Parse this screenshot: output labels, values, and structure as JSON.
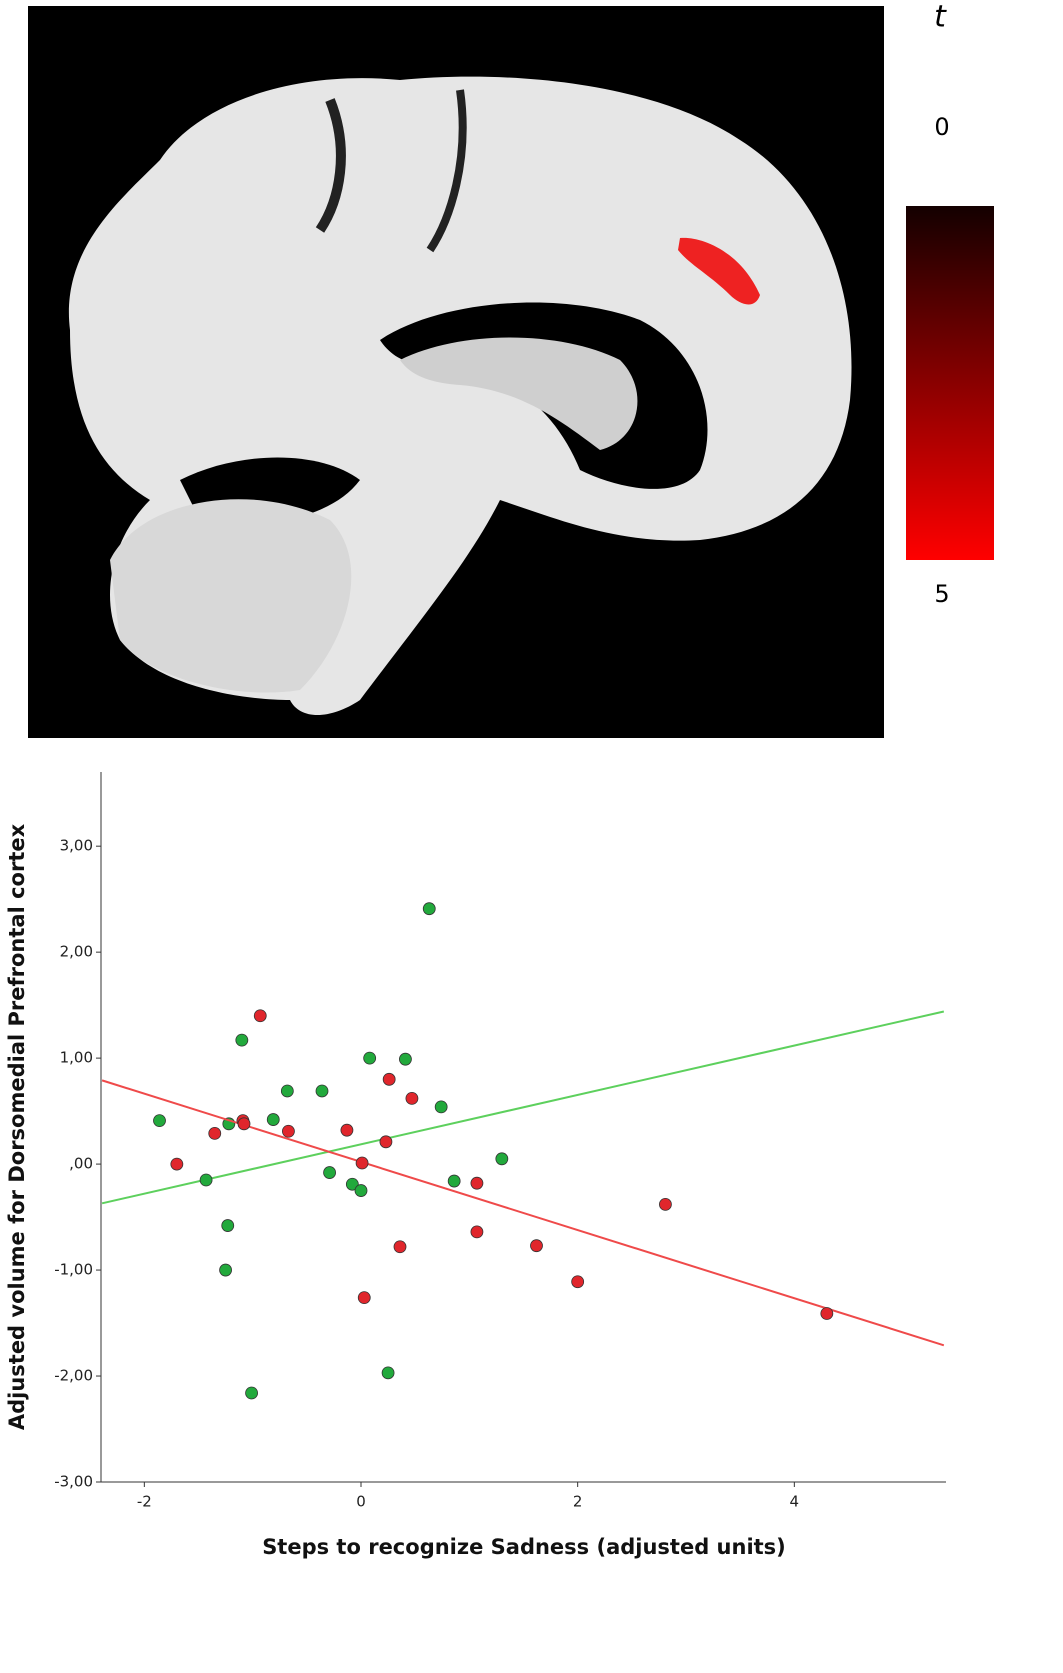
{
  "colorbar": {
    "label": "t",
    "lim": [
      0,
      5
    ],
    "ticks": [
      0,
      5
    ],
    "colors": [
      "#140000",
      "#ff0000"
    ]
  },
  "chart_data": {
    "type": "scatter",
    "xlabel": "Steps to recognize Sadness (adjusted units)",
    "ylabel": "Adjusted volume for Dorsomedial Prefrontal cortex",
    "xlim": [
      -2.4,
      5.4
    ],
    "ylim": [
      -3,
      3.7
    ],
    "xticks": [
      -2,
      0,
      2,
      4
    ],
    "yticks": [
      {
        "value": -3,
        "label": "-3,00"
      },
      {
        "value": -2,
        "label": "-2,00"
      },
      {
        "value": -1,
        "label": "-1,00"
      },
      {
        "value": 0,
        "label": ",00"
      },
      {
        "value": 1,
        "label": "1,00"
      },
      {
        "value": 2,
        "label": "2,00"
      },
      {
        "value": 3,
        "label": "3,00"
      }
    ],
    "series": [
      {
        "color": "#22a93c",
        "x": [
          -1.86,
          -1.1,
          -0.68,
          -0.81,
          -1.22,
          -1.43,
          -1.23,
          -1.25,
          -1.01,
          -0.36,
          -0.29,
          -0.08,
          0.0,
          0.08,
          0.41,
          0.63,
          0.74,
          0.86,
          1.3,
          0.25
        ],
        "values": [
          0.41,
          1.17,
          0.69,
          0.42,
          0.38,
          -0.15,
          -0.58,
          -1.0,
          -2.16,
          0.69,
          -0.08,
          -0.19,
          -0.25,
          1.0,
          0.99,
          2.41,
          0.54,
          -0.16,
          0.05,
          -1.97
        ],
        "fit_x": [
          -2.39,
          5.38
        ],
        "fit_values": [
          -0.37,
          1.44
        ],
        "fit_color": "#5dd05d"
      },
      {
        "color": "#e0262c",
        "x": [
          -0.93,
          -1.7,
          -1.35,
          -1.09,
          -1.08,
          -0.67,
          -0.13,
          0.01,
          0.26,
          0.23,
          0.47,
          0.36,
          0.03,
          1.07,
          1.07,
          1.62,
          2.0,
          2.81,
          4.3
        ],
        "values": [
          1.4,
          0.0,
          0.29,
          0.41,
          0.38,
          0.31,
          0.32,
          0.01,
          0.8,
          0.21,
          0.62,
          -0.78,
          -1.26,
          -0.18,
          -0.64,
          -0.77,
          -1.11,
          -0.38,
          -1.41
        ],
        "fit_x": [
          -2.39,
          5.38
        ],
        "fit_values": [
          0.79,
          -1.71
        ],
        "fit_color": "#ef4a4a"
      }
    ]
  }
}
